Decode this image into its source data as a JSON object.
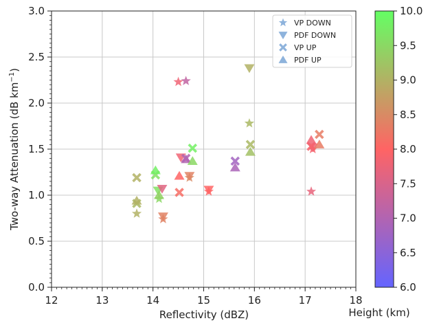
{
  "chart_data": {
    "type": "scatter",
    "xlabel": "Reflectivity (dBZ)",
    "ylabel": "Two-way Attenuation (dB km",
    "ylabel_sup": "−1",
    "ylabel_close": ")",
    "xlim": [
      12,
      18
    ],
    "ylim": [
      0.0,
      3.0
    ],
    "x_ticks": [
      12,
      13,
      14,
      15,
      16,
      17,
      18
    ],
    "y_ticks": [
      0.0,
      0.5,
      1.0,
      1.5,
      2.0,
      2.5,
      3.0
    ],
    "x_tick_labels": [
      "12",
      "13",
      "14",
      "15",
      "16",
      "17",
      "18"
    ],
    "y_tick_labels": [
      "0.0",
      "0.5",
      "1.0",
      "1.5",
      "2.0",
      "2.5",
      "3.0"
    ],
    "grid": true,
    "legend_position": "top-right",
    "colorbar": {
      "label": "Height (km)",
      "range": [
        6.0,
        10.0
      ],
      "ticks": [
        6.0,
        6.5,
        7.0,
        7.5,
        8.0,
        8.5,
        9.0,
        9.5,
        10.0
      ],
      "tick_labels": [
        "6.0",
        "6.5",
        "7.0",
        "7.5",
        "8.0",
        "8.5",
        "9.0",
        "9.5",
        "10.0"
      ],
      "colors": [
        "#6464ff",
        "#ff6464",
        "#64ff64"
      ]
    },
    "series": [
      {
        "name": "VP DOWN",
        "marker": "star",
        "points": [
          {
            "x": 13.68,
            "y": 0.8,
            "h": 9.0
          },
          {
            "x": 14.12,
            "y": 0.96,
            "h": 9.5
          },
          {
            "x": 14.2,
            "y": 0.74,
            "h": 8.4
          },
          {
            "x": 14.5,
            "y": 2.23,
            "h": 7.8
          },
          {
            "x": 14.65,
            "y": 2.24,
            "h": 7.2
          },
          {
            "x": 14.72,
            "y": 1.19,
            "h": 8.5
          },
          {
            "x": 15.1,
            "y": 1.04,
            "h": 8.0
          },
          {
            "x": 15.9,
            "y": 1.78,
            "h": 9.1
          },
          {
            "x": 17.12,
            "y": 1.04,
            "h": 7.7
          },
          {
            "x": 17.15,
            "y": 1.5,
            "h": 7.9
          }
        ]
      },
      {
        "name": "PDF DOWN",
        "marker": "triangle-down",
        "points": [
          {
            "x": 14.1,
            "y": 1.05,
            "h": 9.6
          },
          {
            "x": 14.18,
            "y": 1.07,
            "h": 7.6
          },
          {
            "x": 14.2,
            "y": 0.77,
            "h": 8.4
          },
          {
            "x": 14.55,
            "y": 1.41,
            "h": 7.8
          },
          {
            "x": 14.72,
            "y": 1.21,
            "h": 8.4
          },
          {
            "x": 15.1,
            "y": 1.06,
            "h": 8.0
          },
          {
            "x": 15.9,
            "y": 2.38,
            "h": 9.0
          },
          {
            "x": 17.15,
            "y": 1.52,
            "h": 7.8
          }
        ]
      },
      {
        "name": "VP UP",
        "marker": "x",
        "points": [
          {
            "x": 13.68,
            "y": 1.19,
            "h": 9.0
          },
          {
            "x": 13.68,
            "y": 0.91,
            "h": 9.1
          },
          {
            "x": 14.05,
            "y": 1.22,
            "h": 9.6
          },
          {
            "x": 14.52,
            "y": 1.03,
            "h": 8.1
          },
          {
            "x": 14.65,
            "y": 1.4,
            "h": 7.0
          },
          {
            "x": 14.78,
            "y": 1.51,
            "h": 9.8
          },
          {
            "x": 15.62,
            "y": 1.37,
            "h": 6.8
          },
          {
            "x": 15.92,
            "y": 1.55,
            "h": 9.1
          },
          {
            "x": 17.12,
            "y": 1.53,
            "h": 7.9
          },
          {
            "x": 17.28,
            "y": 1.66,
            "h": 8.3
          }
        ]
      },
      {
        "name": "PDF UP",
        "marker": "triangle-up",
        "points": [
          {
            "x": 13.68,
            "y": 0.94,
            "h": 9.0
          },
          {
            "x": 14.05,
            "y": 1.27,
            "h": 9.8
          },
          {
            "x": 14.12,
            "y": 1.0,
            "h": 9.4
          },
          {
            "x": 14.52,
            "y": 1.21,
            "h": 8.0
          },
          {
            "x": 14.65,
            "y": 1.39,
            "h": 7.0
          },
          {
            "x": 14.78,
            "y": 1.37,
            "h": 9.5
          },
          {
            "x": 15.62,
            "y": 1.3,
            "h": 6.9
          },
          {
            "x": 15.92,
            "y": 1.47,
            "h": 9.2
          },
          {
            "x": 17.12,
            "y": 1.6,
            "h": 7.8
          },
          {
            "x": 17.28,
            "y": 1.55,
            "h": 8.3
          }
        ]
      }
    ]
  }
}
